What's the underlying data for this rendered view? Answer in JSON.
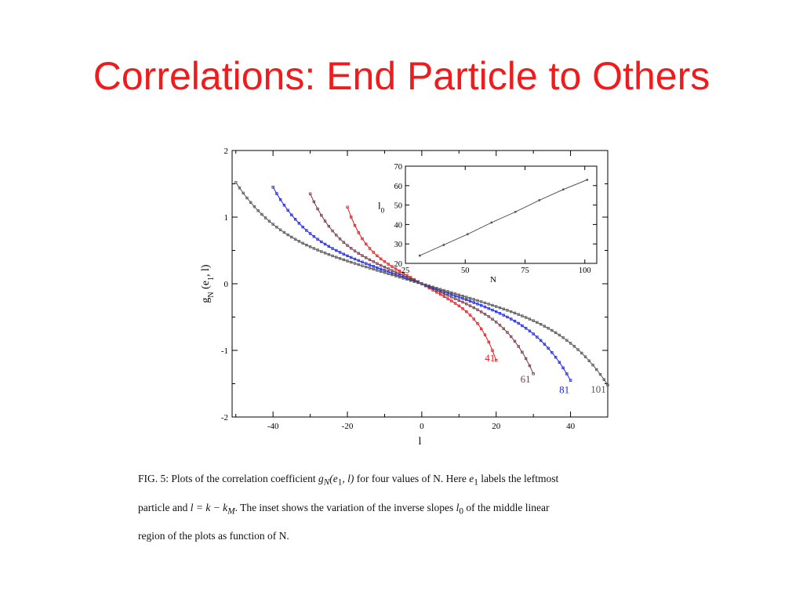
{
  "slide": {
    "title": "Correlations: End Particle to Others"
  },
  "caption": {
    "line1_a": "FIG. 5: Plots of the correlation coefficient ",
    "line1_math1": "g",
    "line1_math1_sub": "N",
    "line1_math1_args": "(e",
    "line1_math1_args_sub": "1",
    "line1_math1_args_end": ", l)",
    "line1_b": " for four values of N. Here ",
    "line1_math2": "e",
    "line1_math2_sub": "1",
    "line1_c": " labels the leftmost",
    "line2_a": "particle and ",
    "line2_math": "l = k − k",
    "line2_math_sub": "M",
    "line2_b": ". The inset shows the variation of the inverse slopes ",
    "line2_math2": "l",
    "line2_math2_sub": "0",
    "line2_c": " of the middle linear",
    "line3": "region of the plots as function of N."
  },
  "chart_data": [
    {
      "type": "line",
      "xlabel": "l",
      "ylabel": "g",
      "ylabel_sub": "N",
      "ylabel_args": "(e",
      "ylabel_args_sub": "1",
      "ylabel_args_end": ", l)",
      "xlim": [
        -51,
        50
      ],
      "ylim": [
        -2,
        2
      ],
      "xticks": [
        -40,
        -20,
        0,
        20,
        40
      ],
      "yticks": [
        -2,
        -1,
        0,
        1,
        2
      ],
      "grid": false,
      "series": [
        {
          "name": "41",
          "color": "#e41a1c",
          "halfwidth": 20,
          "end": 1.15
        },
        {
          "name": "61",
          "color": "#7a3a46",
          "halfwidth": 30,
          "end": 1.35
        },
        {
          "name": "81",
          "color": "#1a24e6",
          "halfwidth": 40,
          "end": 1.45
        },
        {
          "name": "101",
          "color": "#555555",
          "halfwidth": 50,
          "end": 1.52
        }
      ]
    },
    {
      "type": "line",
      "inset": true,
      "xlabel": "N",
      "ylabel": "l",
      "ylabel_sub": "0",
      "xlim": [
        25,
        105
      ],
      "ylim": [
        20,
        70
      ],
      "xticks": [
        25,
        50,
        75,
        100
      ],
      "yticks": [
        20,
        30,
        40,
        50,
        60,
        70
      ],
      "series": [
        {
          "x": [
            31,
            41,
            51,
            61,
            71,
            81,
            91,
            101
          ],
          "y": [
            24,
            29.5,
            35,
            41,
            46.5,
            52.5,
            58,
            63
          ]
        }
      ]
    }
  ],
  "colors": {
    "title": "#ee1c1c",
    "axis": "#000000",
    "inset_line": "#555555"
  }
}
